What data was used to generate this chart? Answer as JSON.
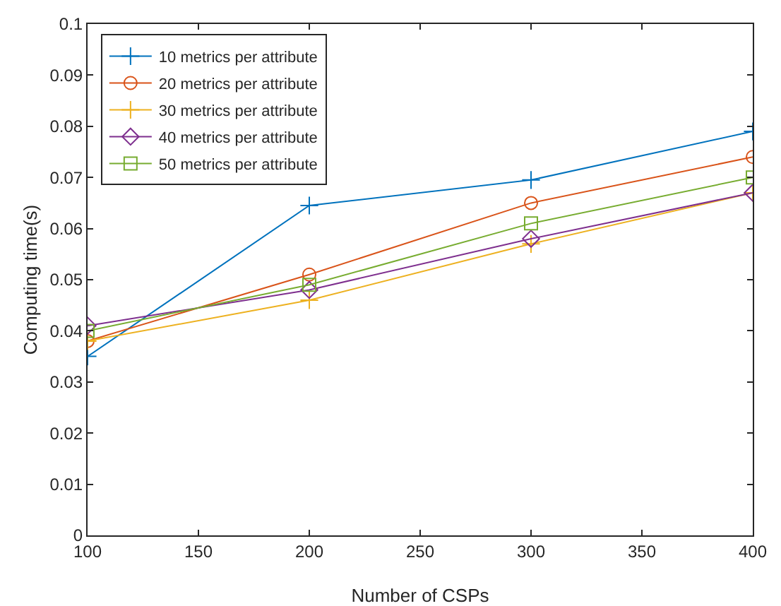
{
  "chart_data": {
    "type": "line",
    "xlabel": "Number of CSPs",
    "ylabel": "Computing time(s)",
    "x": [
      100,
      200,
      300,
      400
    ],
    "series": [
      {
        "name": "10 metrics per attribute",
        "color": "#0072bd",
        "marker": "cross",
        "values": [
          0.035,
          0.0645,
          0.0695,
          0.079
        ]
      },
      {
        "name": "20 metrics per attribute",
        "color": "#d95319",
        "marker": "circle",
        "values": [
          0.038,
          0.051,
          0.065,
          0.074
        ]
      },
      {
        "name": "30 metrics per attribute",
        "color": "#edb120",
        "marker": "cross",
        "values": [
          0.038,
          0.046,
          0.057,
          0.067
        ]
      },
      {
        "name": "40 metrics per attribute",
        "color": "#7e2f8e",
        "marker": "diamond",
        "values": [
          0.041,
          0.048,
          0.058,
          0.067
        ]
      },
      {
        "name": "50 metrics per attribute",
        "color": "#77ac30",
        "marker": "square",
        "values": [
          0.04,
          0.049,
          0.061,
          0.07
        ]
      }
    ],
    "xlim": [
      100,
      400
    ],
    "xticks": [
      100,
      150,
      200,
      250,
      300,
      350,
      400
    ],
    "ylim": [
      0,
      0.1
    ],
    "yticks": [
      0,
      0.01,
      0.02,
      0.03,
      0.04,
      0.05,
      0.06,
      0.07,
      0.08,
      0.09,
      0.1
    ],
    "grid": false,
    "legend": "top left",
    "line_style": "solid"
  }
}
